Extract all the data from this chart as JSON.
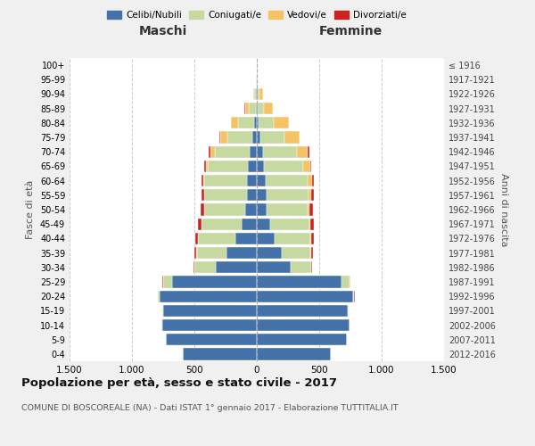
{
  "age_groups": [
    "0-4",
    "5-9",
    "10-14",
    "15-19",
    "20-24",
    "25-29",
    "30-34",
    "35-39",
    "40-44",
    "45-49",
    "50-54",
    "55-59",
    "60-64",
    "65-69",
    "70-74",
    "75-79",
    "80-84",
    "85-89",
    "90-94",
    "95-99",
    "100+"
  ],
  "birth_years": [
    "2012-2016",
    "2007-2011",
    "2002-2006",
    "1997-2001",
    "1992-1996",
    "1987-1991",
    "1982-1986",
    "1977-1981",
    "1972-1976",
    "1967-1971",
    "1962-1966",
    "1957-1961",
    "1952-1956",
    "1947-1951",
    "1942-1946",
    "1937-1941",
    "1932-1936",
    "1927-1931",
    "1922-1926",
    "1917-1921",
    "≤ 1916"
  ],
  "male": {
    "celibi": [
      590,
      730,
      760,
      750,
      780,
      680,
      330,
      240,
      170,
      120,
      90,
      80,
      80,
      70,
      55,
      35,
      20,
      10,
      5,
      2,
      2
    ],
    "coniugati": [
      0,
      0,
      2,
      5,
      10,
      70,
      170,
      240,
      300,
      320,
      330,
      340,
      340,
      320,
      280,
      200,
      130,
      55,
      15,
      3,
      1
    ],
    "vedovi": [
      0,
      0,
      0,
      0,
      0,
      1,
      2,
      3,
      5,
      5,
      5,
      5,
      10,
      20,
      40,
      60,
      55,
      30,
      10,
      1,
      0
    ],
    "divorziati": [
      0,
      0,
      0,
      1,
      2,
      5,
      8,
      15,
      20,
      25,
      25,
      20,
      15,
      10,
      8,
      5,
      3,
      2,
      1,
      0,
      0
    ]
  },
  "female": {
    "nubili": [
      590,
      720,
      740,
      730,
      770,
      680,
      270,
      200,
      140,
      110,
      80,
      75,
      70,
      60,
      50,
      30,
      15,
      10,
      5,
      2,
      2
    ],
    "coniugate": [
      0,
      0,
      2,
      4,
      10,
      65,
      165,
      230,
      290,
      310,
      330,
      340,
      340,
      310,
      270,
      190,
      120,
      50,
      15,
      3,
      1
    ],
    "vedove": [
      0,
      0,
      0,
      0,
      1,
      2,
      3,
      4,
      6,
      8,
      10,
      20,
      30,
      55,
      90,
      120,
      120,
      70,
      30,
      5,
      2
    ],
    "divorziate": [
      0,
      0,
      0,
      1,
      2,
      5,
      8,
      15,
      22,
      28,
      28,
      22,
      18,
      10,
      8,
      5,
      3,
      2,
      1,
      0,
      0
    ]
  },
  "colors": {
    "celibi": "#4472A8",
    "coniugati": "#C5D9A0",
    "vedovi": "#F5C264",
    "divorziati": "#CC2222"
  },
  "xlim": 1500,
  "title": "Popolazione per età, sesso e stato civile - 2017",
  "subtitle": "COMUNE DI BOSCOREALE (NA) - Dati ISTAT 1° gennaio 2017 - Elaborazione TUTTITALIA.IT",
  "xlabel_left": "Maschi",
  "xlabel_right": "Femmine",
  "ylabel_left": "Fasce di età",
  "ylabel_right": "Anni di nascita",
  "bg_color": "#f0f0f0",
  "plot_bg_color": "#ffffff",
  "legend_labels": [
    "Celibi/Nubili",
    "Coniugati/e",
    "Vedovi/e",
    "Divorziati/e"
  ]
}
